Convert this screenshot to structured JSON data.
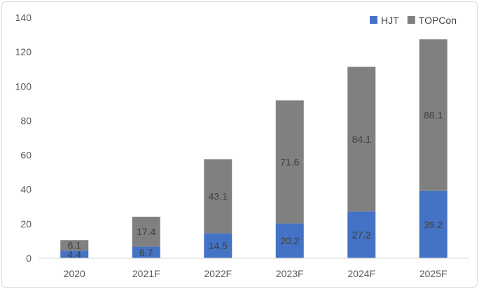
{
  "chart_data": {
    "type": "bar",
    "stacked": true,
    "categories": [
      "2020",
      "2021F",
      "2022F",
      "2023F",
      "2024F",
      "2025F"
    ],
    "series": [
      {
        "name": "HJT",
        "color": "#4472c4",
        "values": [
          4.4,
          6.7,
          14.5,
          20.2,
          27.2,
          39.2
        ]
      },
      {
        "name": "TOPCon",
        "color": "#808080",
        "values": [
          6.1,
          17.4,
          43.1,
          71.6,
          84.1,
          88.1
        ]
      }
    ],
    "ylim": [
      0,
      140
    ],
    "yticks": [
      0,
      20,
      40,
      60,
      80,
      100,
      120,
      140
    ],
    "grid": false,
    "legend": "top-right",
    "title": "",
    "xlabel": "",
    "ylabel": ""
  }
}
